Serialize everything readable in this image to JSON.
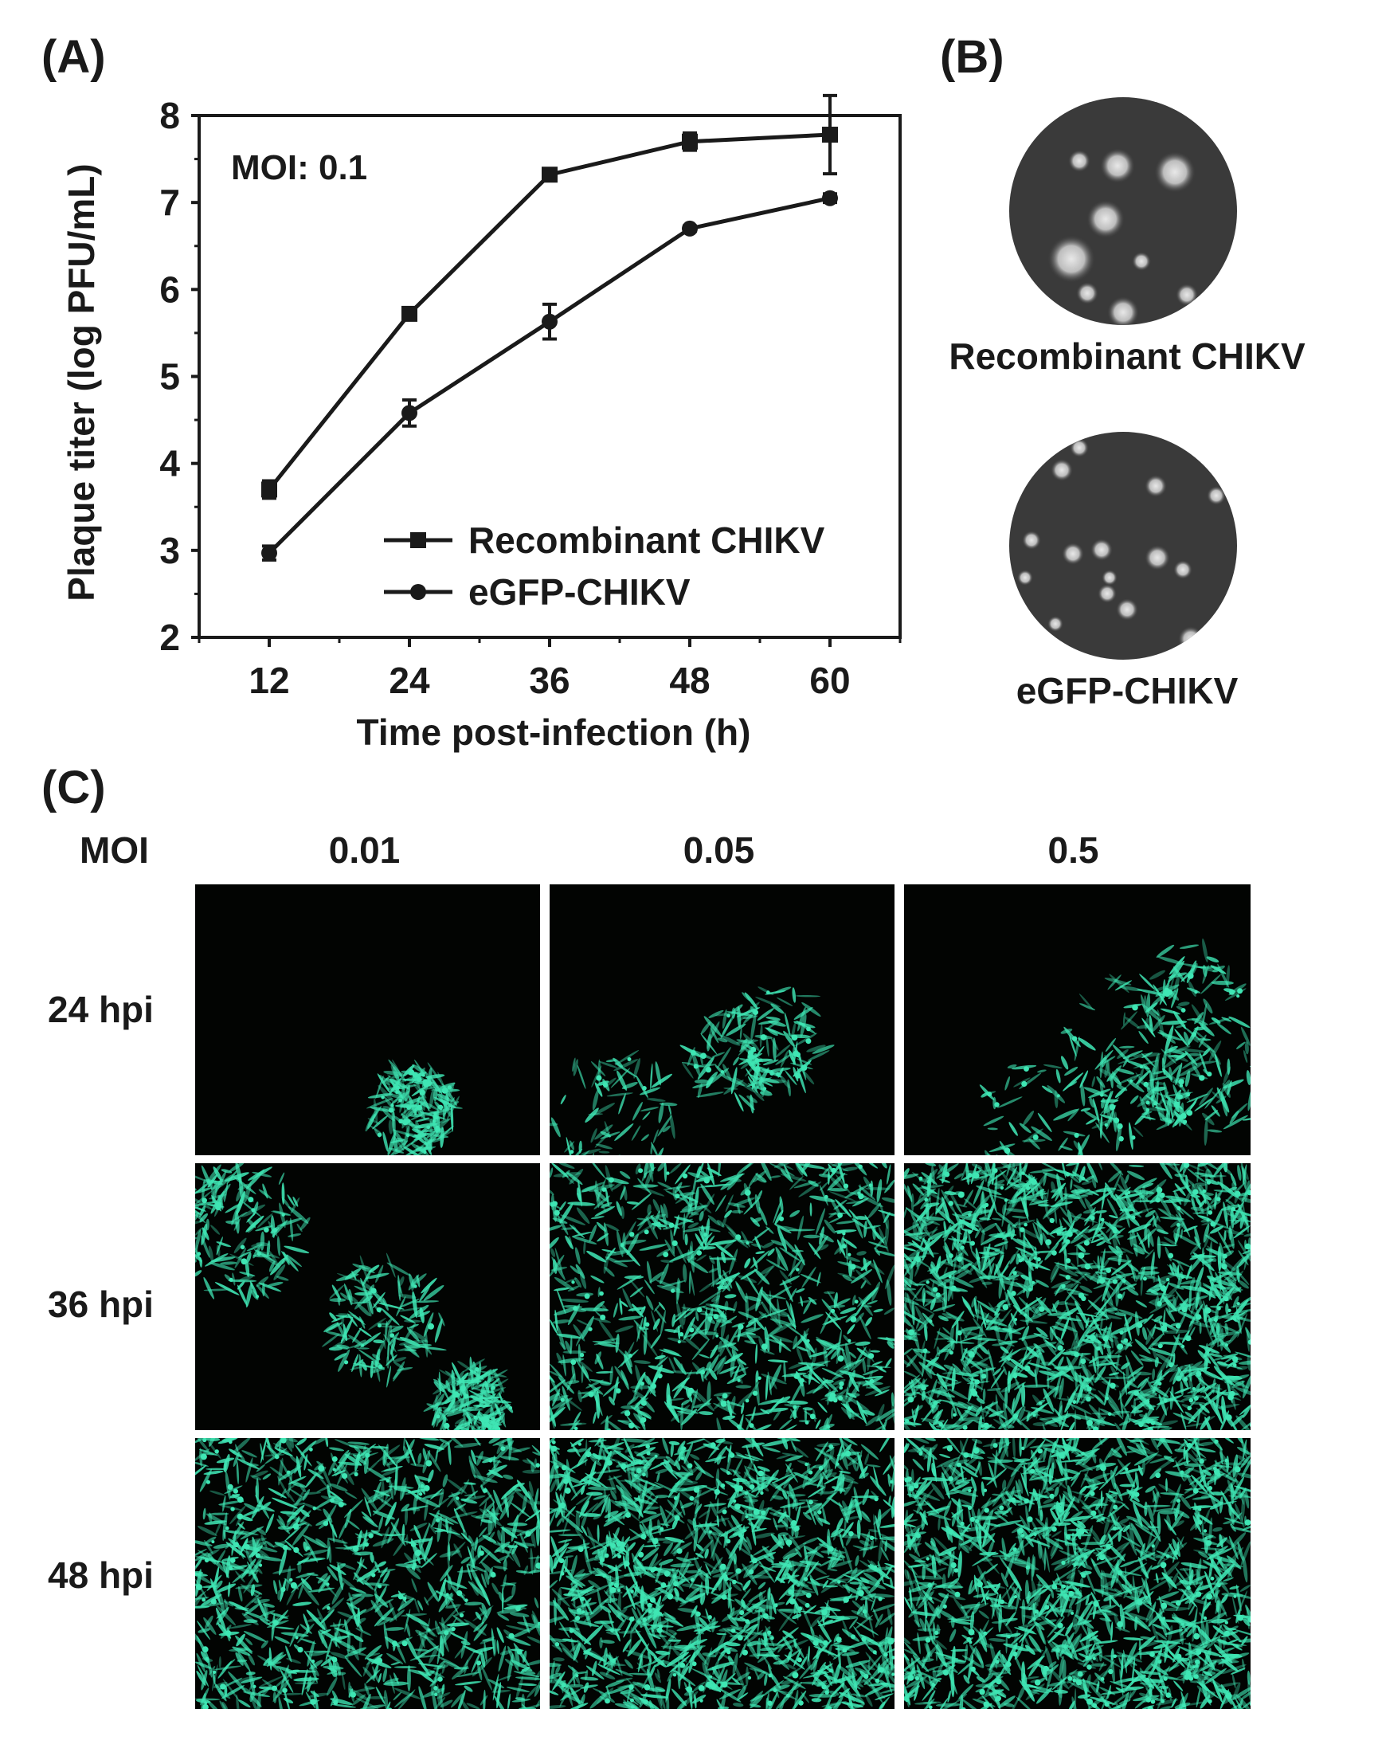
{
  "panels": {
    "a_label": "(A)",
    "b_label": "(B)",
    "c_label": "(C)"
  },
  "chart_data": {
    "type": "line",
    "annotation": "MOI: 0.1",
    "xlabel": "Time post-infection (h)",
    "ylabel": "Plaque titer (log PFU/mL)",
    "x": [
      12,
      24,
      36,
      48,
      60
    ],
    "xlim": [
      6,
      66
    ],
    "ylim": [
      2,
      8
    ],
    "yticks": [
      2,
      3,
      4,
      5,
      6,
      7,
      8
    ],
    "grid": false,
    "legend_position": "bottom-right",
    "series": [
      {
        "name": "Recombinant CHIKV",
        "marker": "square",
        "values": [
          3.7,
          5.72,
          7.32,
          7.7,
          7.78
        ],
        "errors": [
          0.1,
          0.05,
          0.06,
          0.1,
          0.45
        ]
      },
      {
        "name": "eGFP-CHIKV",
        "marker": "circle",
        "values": [
          2.97,
          4.58,
          5.63,
          6.7,
          7.05
        ],
        "errors": [
          0.08,
          0.15,
          0.2,
          0.03,
          0.05
        ]
      }
    ]
  },
  "plaques": {
    "top_caption": "Recombinant CHIKV",
    "bottom_caption": "eGFP-CHIKV"
  },
  "grid": {
    "moi_header": "MOI",
    "columns": [
      "0.01",
      "0.05",
      "0.5"
    ],
    "rows": [
      "24 hpi",
      "36 hpi",
      "48 hpi"
    ]
  },
  "colors": {
    "fluorescence": "#3fe6b4",
    "line": "#1a1a1a",
    "dish_background": "#3a3a3a"
  }
}
